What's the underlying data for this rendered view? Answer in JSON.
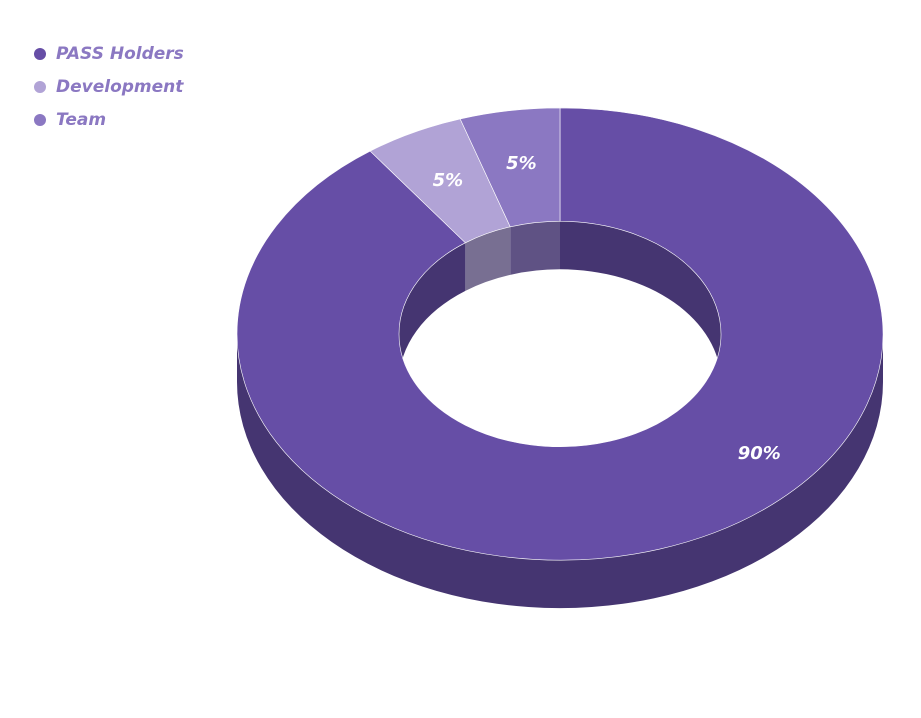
{
  "chart_data": {
    "type": "pie",
    "variant": "3d-donut",
    "legend_position": "top-left",
    "categories": [
      "PASS Holders",
      "Development",
      "Team"
    ],
    "values": [
      90,
      5,
      5
    ],
    "data_labels": [
      "90%",
      "5%",
      "5%"
    ],
    "colors": [
      "#664ea6",
      "#b1a3d6",
      "#8b78c2"
    ],
    "label_color": "#8b78c2"
  }
}
